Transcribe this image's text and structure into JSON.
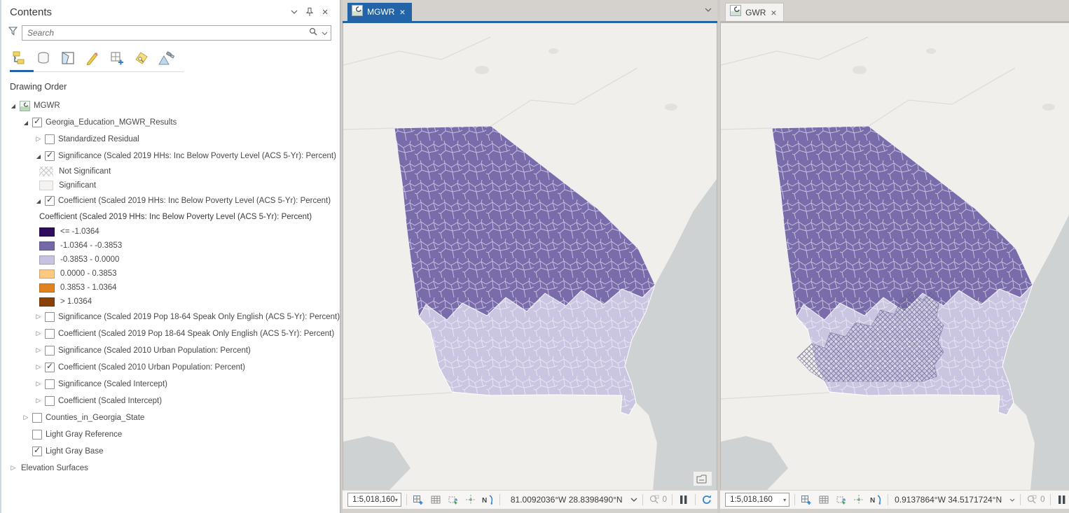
{
  "contents_panel": {
    "title": "Contents",
    "header_icons": [
      "chevron-down-icon",
      "pin-icon",
      "close-icon"
    ],
    "search": {
      "placeholder": "Search",
      "icons": [
        "filter-icon",
        "search-icon",
        "chevron-down-icon"
      ]
    },
    "toolbar_icons": [
      "list-by-drawing-order-icon",
      "list-by-data-source-icon",
      "list-by-selection-icon",
      "list-by-editing-icon",
      "list-by-snapping-icon",
      "list-by-labeling-icon",
      "list-by-perspective-icon"
    ],
    "active_toolbar_icon": "list-by-drawing-order-icon",
    "section_label": "Drawing Order",
    "tree": [
      {
        "type": "layer",
        "label": "MGWR",
        "level": 0,
        "expander": "expanded",
        "checkbox": false,
        "icon": "map-thumbnail"
      },
      {
        "type": "layer",
        "label": "Georgia_Education_MGWR_Results",
        "level": 1,
        "expander": "expanded",
        "checkbox": true,
        "checked": true
      },
      {
        "type": "layer",
        "label": "Standardized Residual",
        "level": 2,
        "expander": "collapsed",
        "checkbox": true,
        "checked": false
      },
      {
        "type": "layer",
        "label": "Significance (Scaled 2019 HHs: Inc Below Poverty Level (ACS 5-Yr): Percent)",
        "level": 2,
        "expander": "expanded",
        "checkbox": true,
        "checked": true
      },
      {
        "type": "swatch",
        "label": "Not Significant",
        "swatch": "hatch",
        "level": 3
      },
      {
        "type": "swatch",
        "label": "Significant",
        "swatch": "plain",
        "level": 3
      },
      {
        "type": "layer",
        "label": "Coefficient (Scaled 2019 HHs: Inc Below Poverty Level (ACS 5-Yr): Percent)",
        "level": 2,
        "expander": "expanded",
        "checkbox": true,
        "checked": true
      },
      {
        "type": "legend-title",
        "label": "Coefficient (Scaled 2019 HHs: Inc Below Poverty Level (ACS 5-Yr): Percent)",
        "level": 3
      },
      {
        "type": "swatch",
        "label": "<= -1.0364",
        "color": "#2f0c5d",
        "level": 3
      },
      {
        "type": "swatch",
        "label": "-1.0364 - -0.3853",
        "color": "#7568a9",
        "level": 3
      },
      {
        "type": "swatch",
        "label": "-0.3853 - 0.0000",
        "color": "#c6c2e1",
        "level": 3
      },
      {
        "type": "swatch",
        "label": "0.0000 - 0.3853",
        "color": "#fdc981",
        "level": 3
      },
      {
        "type": "swatch",
        "label": "0.3853 - 1.0364",
        "color": "#e0821d",
        "level": 3
      },
      {
        "type": "swatch",
        "label": "> 1.0364",
        "color": "#8a4009",
        "level": 3
      },
      {
        "type": "layer",
        "label": "Significance (Scaled 2019 Pop 18-64 Speak Only English (ACS 5-Yr): Percent)",
        "level": 2,
        "expander": "collapsed",
        "checkbox": true,
        "checked": false
      },
      {
        "type": "layer",
        "label": "Coefficient (Scaled 2019 Pop 18-64 Speak Only English (ACS 5-Yr): Percent)",
        "level": 2,
        "expander": "collapsed",
        "checkbox": true,
        "checked": false
      },
      {
        "type": "layer",
        "label": "Significance (Scaled 2010 Urban Population: Percent)",
        "level": 2,
        "expander": "collapsed",
        "checkbox": true,
        "checked": false
      },
      {
        "type": "layer",
        "label": "Coefficient (Scaled 2010 Urban Population: Percent)",
        "level": 2,
        "expander": "collapsed",
        "checkbox": true,
        "checked": true
      },
      {
        "type": "layer",
        "label": "Significance (Scaled Intercept)",
        "level": 2,
        "expander": "collapsed",
        "checkbox": true,
        "checked": false
      },
      {
        "type": "layer",
        "label": "Coefficient (Scaled Intercept)",
        "level": 2,
        "expander": "collapsed",
        "checkbox": true,
        "checked": false
      },
      {
        "type": "layer",
        "label": "Counties_in_Georgia_State",
        "level": 1,
        "expander": "collapsed",
        "checkbox": true,
        "checked": false
      },
      {
        "type": "layer",
        "label": "Light Gray Reference",
        "level": 1,
        "expander": "none",
        "checkbox": true,
        "checked": false
      },
      {
        "type": "layer",
        "label": "Light Gray Base",
        "level": 1,
        "expander": "none",
        "checkbox": true,
        "checked": true
      },
      {
        "type": "layer",
        "label": "Elevation Surfaces",
        "level": 0,
        "expander": "collapsed",
        "checkbox": false
      }
    ]
  },
  "map_panes": [
    {
      "tab": "MGWR",
      "active": true,
      "scale": "1:5,018,160",
      "coordinates": "81.0092036°W 28.8398490°N",
      "selection_count": "0",
      "hatched": false,
      "status_icons": [
        "new-map-view-icon",
        "attribute-table-icon",
        "selection-tools-icon",
        "snapping-icon",
        "north-arrow-icon",
        "selection-count-icon",
        "pause-drawing-icon",
        "refresh-icon"
      ]
    },
    {
      "tab": "GWR",
      "active": false,
      "scale": "1:5,018,160",
      "coordinates": "0.9137864°W 34.5171724°N",
      "selection_count": "0",
      "hatched": true,
      "status_icons": [
        "new-map-view-icon",
        "attribute-table-icon",
        "selection-tools-icon",
        "snapping-icon",
        "north-arrow-icon",
        "selection-count-icon",
        "pause-drawing-icon",
        "refresh-icon"
      ]
    }
  ],
  "map_colors": {
    "land": "#f0efec",
    "water": "#ced2d3",
    "state_line": "#dedcd8",
    "urban_patch": "#e2e1dc",
    "coefficient_mid_purple": "#7a6cab",
    "coefficient_light_purple": "#cac6e2",
    "county_line": "#ffffff",
    "hatch_line": "#5f5a84",
    "accent_blue": "#2264a7"
  }
}
